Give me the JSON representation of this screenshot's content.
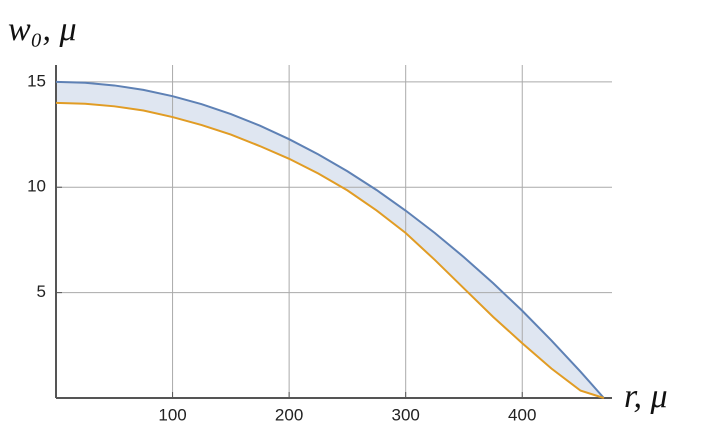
{
  "chart_data": {
    "type": "line",
    "x_label": "r, μ",
    "y_label": "w₀, μ",
    "x": [
      0,
      25,
      50,
      75,
      100,
      125,
      150,
      175,
      200,
      225,
      250,
      275,
      300,
      325,
      350,
      375,
      400,
      425,
      450,
      470
    ],
    "series": [
      {
        "name": "upper",
        "color": "#5e81b5",
        "values": [
          15.0,
          14.96,
          14.83,
          14.62,
          14.32,
          13.94,
          13.47,
          12.92,
          12.28,
          11.56,
          10.76,
          9.87,
          8.89,
          7.83,
          6.68,
          5.45,
          4.14,
          2.73,
          1.25,
          0
        ]
      },
      {
        "name": "lower",
        "color": "#e19c24",
        "values": [
          14.0,
          13.96,
          13.84,
          13.64,
          13.33,
          12.95,
          12.5,
          11.95,
          11.35,
          10.65,
          9.85,
          8.9,
          7.83,
          6.55,
          5.2,
          3.85,
          2.6,
          1.4,
          0.35,
          0
        ]
      }
    ],
    "fill_between": "#dfe6f1",
    "xlim": [
      0,
      477
    ],
    "ylim": [
      0,
      15.8
    ],
    "xticks": [
      100,
      200,
      300,
      400
    ],
    "yticks": [
      5,
      10,
      15
    ],
    "grid": true
  }
}
